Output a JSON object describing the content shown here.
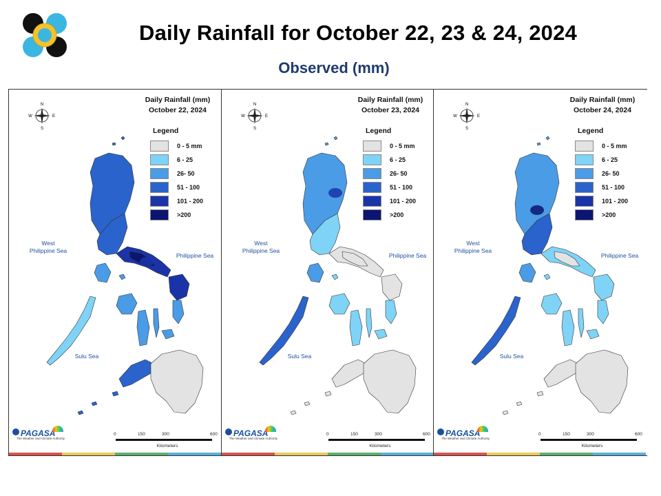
{
  "header": {
    "title": "Daily Rainfall for October 22, 23 & 24, 2024",
    "subtitle": "Observed (mm)"
  },
  "legend": {
    "title": "Legend",
    "items": [
      {
        "label": "0 - 5 mm",
        "color": "#e3e3e3"
      },
      {
        "label": "6 - 25",
        "color": "#7fd3f7"
      },
      {
        "label": "26- 50",
        "color": "#4a9ce6"
      },
      {
        "label": "51 - 100",
        "color": "#2a63cc"
      },
      {
        "label": "101 - 200",
        "color": "#1a34a8"
      },
      {
        "label": ">200",
        "color": "#0c1570"
      }
    ]
  },
  "compass": {
    "n": "N",
    "s": "S",
    "e": "E",
    "w": "W"
  },
  "seas": {
    "west": "West\nPhilippine Sea",
    "east": "Philippine Sea",
    "sulu": "Sulu Sea"
  },
  "scale": {
    "ticks": [
      "0",
      "150",
      "300",
      "600"
    ],
    "unit": "Kilometers"
  },
  "brand": {
    "word": "PAGASA",
    "sub": "The Weather and Climate Authority"
  },
  "panels": [
    {
      "title_line1": "Daily Rainfall (mm)",
      "title_line2": "October 22, 2024",
      "luzon_n": "#2a63cc",
      "luzon_c": "#2a63cc",
      "bicol": "#1a34a8",
      "bicol_core": "#0c1570",
      "mindoro": "#4a9ce6",
      "palawan": "#7fd3f7",
      "visayas": "#4a9ce6",
      "samar": "#1a34a8",
      "mindanao_w": "#2a63cc",
      "mindanao_e": "#e3e3e3",
      "hotspot": "#1a34a8"
    },
    {
      "title_line1": "Daily Rainfall (mm)",
      "title_line2": "October 23, 2024",
      "luzon_n": "#4a9ce6",
      "luzon_c": "#7fd3f7",
      "bicol": "#e3e3e3",
      "bicol_core": "#e3e3e3",
      "mindoro": "#4a9ce6",
      "palawan": "#2a63cc",
      "visayas": "#7fd3f7",
      "samar": "#e3e3e3",
      "mindanao_w": "#e3e3e3",
      "mindanao_e": "#e3e3e3",
      "hotspot": "#1a34a8"
    },
    {
      "title_line1": "Daily Rainfall (mm)",
      "title_line2": "October 24, 2024",
      "luzon_n": "#4a9ce6",
      "luzon_c": "#2a63cc",
      "bicol": "#7fd3f7",
      "bicol_core": "#e3e3e3",
      "mindoro": "#4a9ce6",
      "palawan": "#2a63cc",
      "visayas": "#7fd3f7",
      "samar": "#7fd3f7",
      "mindanao_w": "#e3e3e3",
      "mindanao_e": "#e3e3e3",
      "hotspot": "#0c1570"
    }
  ],
  "colorbar": [
    "#d9534f",
    "#e8c95a",
    "#5cae6e",
    "#5ab0d8"
  ]
}
